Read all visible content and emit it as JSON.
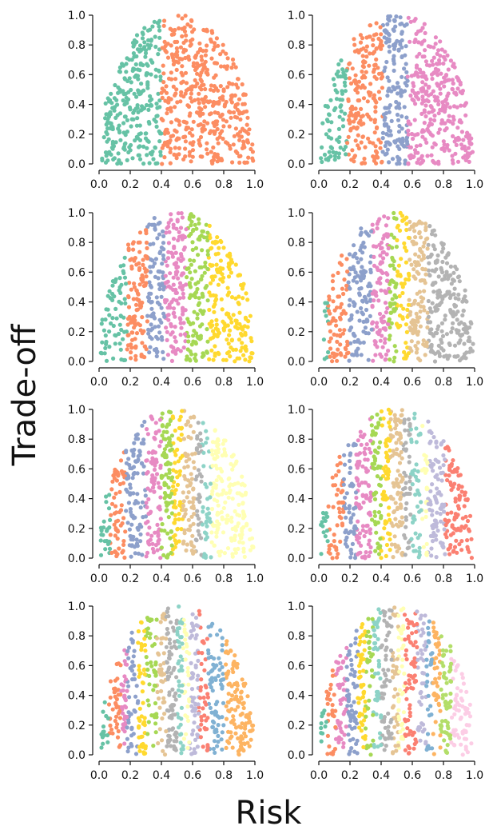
{
  "figure": {
    "xlabel": "Risk",
    "ylabel": "Trade-off"
  },
  "palette": [
    "#66c2a5",
    "#fc8d62",
    "#8da0cb",
    "#e78ac3",
    "#a6d854",
    "#ffd92f",
    "#e5c494",
    "#b3b3b3",
    "#8dd3c7",
    "#ffffb3",
    "#bebada",
    "#fb8072",
    "#80b1d3",
    "#fdb462",
    "#b3de69",
    "#fccde5"
  ],
  "chart_data": [
    {
      "type": "scatter",
      "panel": 1,
      "xlim": [
        0,
        1
      ],
      "ylim": [
        0,
        1
      ],
      "xticks": [
        "0.0",
        "0.2",
        "0.4",
        "0.6",
        "0.8",
        "1.0"
      ],
      "yticks": [
        "0.0",
        "0.2",
        "0.4",
        "0.6",
        "0.8",
        "1.0"
      ],
      "clusters": 2,
      "boundaries": [
        0,
        0.4,
        1
      ],
      "colors": [
        "#66c2a5",
        "#fc8d62"
      ]
    },
    {
      "type": "scatter",
      "panel": 2,
      "xlim": [
        0,
        1
      ],
      "ylim": [
        0,
        1
      ],
      "xticks": [
        "0.0",
        "0.2",
        "0.4",
        "0.6",
        "0.8",
        "1.0"
      ],
      "yticks": [
        "0.0",
        "0.2",
        "0.4",
        "0.6",
        "0.8",
        "1.0"
      ],
      "clusters": 4,
      "boundaries": [
        0,
        0.18,
        0.41,
        0.57,
        1
      ],
      "colors": [
        "#66c2a5",
        "#fc8d62",
        "#8da0cb",
        "#e78ac3"
      ]
    },
    {
      "type": "scatter",
      "panel": 3,
      "xlim": [
        0,
        1
      ],
      "ylim": [
        0,
        1
      ],
      "xticks": [
        "0.0",
        "0.2",
        "0.4",
        "0.6",
        "0.8",
        "1.0"
      ],
      "yticks": [
        "0.0",
        "0.2",
        "0.4",
        "0.6",
        "0.8",
        "1.0"
      ],
      "clusters": 6,
      "boundaries": [
        0,
        0.18,
        0.31,
        0.42,
        0.56,
        0.7,
        1
      ],
      "colors": [
        "#66c2a5",
        "#fc8d62",
        "#8da0cb",
        "#e78ac3",
        "#a6d854",
        "#ffd92f"
      ]
    },
    {
      "type": "scatter",
      "panel": 4,
      "xlim": [
        0,
        1
      ],
      "ylim": [
        0,
        1
      ],
      "xticks": [
        "0.0",
        "0.2",
        "0.4",
        "0.6",
        "0.8",
        "1.0"
      ],
      "yticks": [
        "0.0",
        "0.2",
        "0.4",
        "0.6",
        "0.8",
        "1.0"
      ],
      "clusters": 8,
      "boundaries": [
        0,
        0.06,
        0.19,
        0.34,
        0.45,
        0.5,
        0.58,
        0.7,
        1
      ],
      "colors": [
        "#66c2a5",
        "#fc8d62",
        "#8da0cb",
        "#e78ac3",
        "#a6d854",
        "#ffd92f",
        "#e5c494",
        "#b3b3b3"
      ]
    },
    {
      "type": "scatter",
      "panel": 5,
      "xlim": [
        0,
        1
      ],
      "ylim": [
        0,
        1
      ],
      "xticks": [
        "0.0",
        "0.2",
        "0.4",
        "0.6",
        "0.8",
        "1.0"
      ],
      "yticks": [
        "0.0",
        "0.2",
        "0.4",
        "0.6",
        "0.8",
        "1.0"
      ],
      "clusters": 10,
      "boundaries": [
        0,
        0.07,
        0.17,
        0.3,
        0.4,
        0.47,
        0.54,
        0.62,
        0.66,
        0.72,
        1
      ],
      "colors": [
        "#66c2a5",
        "#fc8d62",
        "#8da0cb",
        "#e78ac3",
        "#a6d854",
        "#ffd92f",
        "#e5c494",
        "#b3b3b3",
        "#8dd3c7",
        "#ffffb3"
      ]
    },
    {
      "type": "scatter",
      "panel": 6,
      "xlim": [
        0,
        1
      ],
      "ylim": [
        0,
        1
      ],
      "xticks": [
        "0.0",
        "0.2",
        "0.4",
        "0.6",
        "0.8",
        "1.0"
      ],
      "yticks": [
        "0.0",
        "0.2",
        "0.4",
        "0.6",
        "0.8",
        "1.0"
      ],
      "clusters": 12,
      "boundaries": [
        0,
        0.06,
        0.16,
        0.24,
        0.34,
        0.4,
        0.46,
        0.54,
        0.59,
        0.66,
        0.7,
        0.81,
        1
      ],
      "colors": [
        "#66c2a5",
        "#fc8d62",
        "#8da0cb",
        "#e78ac3",
        "#a6d854",
        "#ffd92f",
        "#e5c494",
        "#b3b3b3",
        "#8dd3c7",
        "#ffffb3",
        "#bebada",
        "#fb8072"
      ]
    },
    {
      "type": "scatter",
      "panel": 7,
      "xlim": [
        0,
        1
      ],
      "ylim": [
        0,
        1
      ],
      "xticks": [
        "0.0",
        "0.2",
        "0.4",
        "0.6",
        "0.8",
        "1.0"
      ],
      "yticks": [
        "0.0",
        "0.2",
        "0.4",
        "0.6",
        "0.8",
        "1.0"
      ],
      "clusters": 14,
      "boundaries": [
        0,
        0.06,
        0.14,
        0.18,
        0.25,
        0.3,
        0.37,
        0.43,
        0.5,
        0.54,
        0.58,
        0.64,
        0.7,
        0.81,
        1
      ],
      "colors": [
        "#66c2a5",
        "#fc8d62",
        "#e78ac3",
        "#8da0cb",
        "#ffd92f",
        "#a6d854",
        "#e5c494",
        "#b3b3b3",
        "#8dd3c7",
        "#ffffb3",
        "#bebada",
        "#fb8072",
        "#80b1d3",
        "#fdb462"
      ]
    },
    {
      "type": "scatter",
      "panel": 8,
      "xlim": [
        0,
        1
      ],
      "ylim": [
        0,
        1
      ],
      "xticks": [
        "0.0",
        "0.2",
        "0.4",
        "0.6",
        "0.8",
        "1.0"
      ],
      "yticks": [
        "0.0",
        "0.2",
        "0.4",
        "0.6",
        "0.8",
        "1.0"
      ],
      "clusters": 16,
      "boundaries": [
        0,
        0.05,
        0.11,
        0.18,
        0.25,
        0.3,
        0.35,
        0.4,
        0.47,
        0.51,
        0.55,
        0.63,
        0.69,
        0.73,
        0.78,
        0.85,
        1
      ],
      "colors": [
        "#66c2a5",
        "#fc8d62",
        "#e78ac3",
        "#8da0cb",
        "#ffd92f",
        "#a6d854",
        "#8dd3c7",
        "#b3b3b3",
        "#e5c494",
        "#ffffb3",
        "#fb8072",
        "#bebada",
        "#80b1d3",
        "#fdb462",
        "#b3de69",
        "#fccde5"
      ]
    }
  ]
}
